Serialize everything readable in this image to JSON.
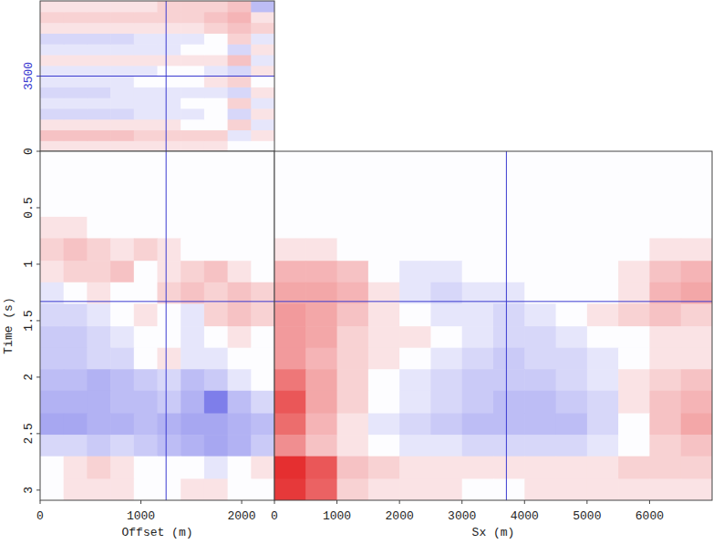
{
  "chart_data": [
    {
      "type": "heatmap",
      "tick_labels": "y",
      "xlim": [
        0,
        2325
      ],
      "ylim": [
        0,
        7000
      ],
      "yticks": [
        3500
      ],
      "zlim": [
        -1,
        1
      ],
      "cursor": {
        "x": 1250,
        "y": 3500
      },
      "x_bins": [
        0,
        232.5,
        465,
        697.5,
        930,
        1162.5,
        1395,
        1627.5,
        1860,
        2092.5,
        2325
      ],
      "y_bins": [
        0,
        500,
        1000,
        1500,
        2000,
        2500,
        3000,
        3500,
        4000,
        4500,
        5000,
        5500,
        6000,
        6500,
        7000
      ],
      "cells": [
        [
          0.05,
          0.05,
          0.05,
          0.05,
          0.05,
          0.05,
          0.05,
          0.05,
          0,
          0
        ],
        [
          0.15,
          0.15,
          0.15,
          0.15,
          0.1,
          0.1,
          0.1,
          0.1,
          -0.05,
          0.05
        ],
        [
          0.05,
          0.05,
          0.05,
          0.05,
          0.05,
          0.05,
          0,
          0,
          0.1,
          -0.05
        ],
        [
          -0.1,
          -0.1,
          -0.1,
          -0.1,
          -0.05,
          -0.05,
          -0.05,
          0,
          -0.1,
          0.05
        ],
        [
          -0.05,
          -0.05,
          -0.05,
          -0.05,
          -0.05,
          -0.05,
          0,
          0,
          0.1,
          -0.05
        ],
        [
          -0.1,
          -0.1,
          -0.1,
          -0.05,
          -0.05,
          -0.05,
          -0.05,
          -0.05,
          -0.1,
          0.05
        ],
        [
          -0.05,
          -0.05,
          -0.05,
          -0.05,
          0,
          0,
          0,
          0.05,
          0.1,
          0
        ],
        [
          -0.05,
          -0.05,
          -0.05,
          -0.05,
          -0.05,
          0,
          0,
          -0.05,
          -0.1,
          0.05
        ],
        [
          0.05,
          0.05,
          0.05,
          0.05,
          0.05,
          0.05,
          0.05,
          0.05,
          0.15,
          -0.05
        ],
        [
          -0.05,
          -0.05,
          -0.05,
          -0.05,
          -0.05,
          -0.05,
          0,
          0,
          -0.1,
          0.05
        ],
        [
          -0.1,
          -0.1,
          -0.1,
          -0.1,
          -0.05,
          -0.05,
          -0.05,
          0,
          0.1,
          -0.05
        ],
        [
          0.05,
          0.05,
          0.05,
          0.05,
          0.05,
          0.05,
          0.05,
          0.1,
          0.15,
          0.1
        ],
        [
          0.1,
          0.1,
          0.1,
          0.1,
          0.1,
          0.1,
          0.1,
          0.15,
          0.2,
          0.05
        ],
        [
          0.05,
          0.05,
          0.05,
          0.05,
          0.05,
          0.1,
          0.1,
          0.1,
          0.15,
          -0.2
        ]
      ]
    },
    {
      "type": "heatmap",
      "x_label": "Offset (m)",
      "y_label": "Time (s)",
      "xlim": [
        0,
        2325
      ],
      "xticks": [
        0,
        1000,
        2000
      ],
      "ylim": [
        3.09,
        0
      ],
      "yticks": [
        0,
        0.5,
        1,
        1.5,
        2,
        2.5,
        3
      ],
      "zlim": [
        -1,
        1
      ],
      "cursor": {
        "x": 1250,
        "y": 1.33
      },
      "x_bins": [
        0,
        232.5,
        465,
        697.5,
        930,
        1162.5,
        1395,
        1627.5,
        1860,
        2092.5,
        2325
      ],
      "y_bins": [
        0,
        0.19,
        0.39,
        0.58,
        0.77,
        0.97,
        1.16,
        1.35,
        1.55,
        1.74,
        1.93,
        2.12,
        2.32,
        2.51,
        2.7,
        2.9,
        3.09
      ],
      "cells": [
        [
          0,
          0,
          0,
          0,
          0,
          0,
          0,
          0,
          0,
          0
        ],
        [
          0,
          0,
          0,
          0,
          0,
          0,
          0,
          0,
          0,
          0
        ],
        [
          0,
          0,
          0,
          0,
          0,
          0,
          0,
          0,
          0,
          0
        ],
        [
          0.05,
          0.05,
          0,
          0,
          0,
          0,
          0,
          0,
          0,
          0
        ],
        [
          0.1,
          0.15,
          0.1,
          0.05,
          0.1,
          0.05,
          0,
          0,
          0,
          0
        ],
        [
          0.05,
          0.1,
          0.1,
          0.15,
          0,
          0.05,
          0.1,
          0.15,
          0.05,
          0
        ],
        [
          -0.05,
          0,
          0.05,
          0,
          0,
          0.1,
          0.15,
          0.1,
          0.15,
          0.1
        ],
        [
          -0.1,
          -0.1,
          -0.05,
          0,
          0.05,
          0,
          -0.05,
          0.1,
          0.15,
          0.1
        ],
        [
          -0.15,
          -0.15,
          -0.1,
          -0.05,
          0,
          0,
          -0.05,
          0,
          0.05,
          0
        ],
        [
          -0.15,
          -0.15,
          -0.1,
          -0.1,
          0,
          0.05,
          -0.05,
          -0.05,
          0,
          0
        ],
        [
          -0.2,
          -0.2,
          -0.25,
          -0.2,
          -0.15,
          -0.1,
          -0.2,
          -0.15,
          -0.05,
          0
        ],
        [
          -0.25,
          -0.25,
          -0.25,
          -0.2,
          -0.2,
          -0.15,
          -0.25,
          -0.5,
          -0.2,
          -0.1
        ],
        [
          -0.3,
          -0.3,
          -0.25,
          -0.25,
          -0.2,
          -0.25,
          -0.3,
          -0.3,
          -0.25,
          -0.2
        ],
        [
          -0.1,
          -0.1,
          -0.15,
          -0.1,
          -0.15,
          -0.2,
          -0.25,
          -0.3,
          -0.25,
          -0.15
        ],
        [
          0,
          0.05,
          0.1,
          0.05,
          0,
          0,
          0,
          -0.05,
          0,
          0.05
        ],
        [
          0,
          0.05,
          0.05,
          0.05,
          0,
          0,
          0.05,
          0.05,
          0,
          0
        ]
      ]
    },
    {
      "type": "heatmap",
      "x_label": "Sx (m)",
      "tick_labels": "x",
      "xlim": [
        0,
        7000
      ],
      "xticks": [
        0,
        1000,
        2000,
        3000,
        4000,
        5000,
        6000
      ],
      "ylim": [
        3.09,
        0
      ],
      "zlim": [
        -1,
        1
      ],
      "cursor": {
        "x": 3710,
        "y": 1.33
      },
      "x_bins": [
        0,
        500,
        1000,
        1500,
        2000,
        2500,
        3000,
        3500,
        4000,
        4500,
        5000,
        5500,
        6000,
        6500,
        7000
      ],
      "y_bins": [
        0,
        0.19,
        0.39,
        0.58,
        0.77,
        0.97,
        1.16,
        1.35,
        1.55,
        1.74,
        1.93,
        2.12,
        2.32,
        2.51,
        2.7,
        2.9,
        3.09
      ],
      "cells": [
        [
          0,
          0,
          0,
          0,
          0,
          0,
          0,
          0,
          0,
          0,
          0,
          0,
          0,
          0
        ],
        [
          0,
          0,
          0,
          0,
          0,
          0,
          0,
          0,
          0,
          0,
          0,
          0,
          0,
          0
        ],
        [
          0,
          0,
          0,
          0,
          0,
          0,
          0,
          0,
          0,
          0,
          0,
          0,
          0,
          0
        ],
        [
          0,
          0,
          0,
          0,
          0,
          0,
          0,
          0,
          0,
          0,
          0,
          0,
          0,
          0
        ],
        [
          0.05,
          0.05,
          0,
          0,
          0,
          0,
          0,
          0,
          0,
          0,
          0,
          0,
          0.05,
          0.05
        ],
        [
          0.2,
          0.2,
          0.15,
          0,
          -0.05,
          -0.05,
          0,
          0,
          0,
          0,
          0,
          0.05,
          0.15,
          0.2
        ],
        [
          0.25,
          0.25,
          0.2,
          0.05,
          -0.05,
          -0.1,
          -0.05,
          -0.05,
          0,
          0,
          0,
          0.05,
          0.2,
          0.25
        ],
        [
          0.3,
          0.25,
          0.15,
          0.05,
          0,
          -0.05,
          -0.05,
          -0.1,
          -0.05,
          0,
          0.05,
          0.1,
          0.15,
          0.1
        ],
        [
          0.3,
          0.25,
          0.1,
          0.05,
          0.05,
          0,
          -0.05,
          -0.1,
          -0.1,
          -0.05,
          0,
          0,
          0.05,
          0.05
        ],
        [
          0.3,
          0.2,
          0.1,
          0.05,
          0,
          -0.05,
          -0.1,
          -0.15,
          -0.1,
          -0.1,
          -0.05,
          0,
          0.05,
          0.05
        ],
        [
          0.45,
          0.25,
          0.1,
          0,
          -0.05,
          -0.1,
          -0.15,
          -0.15,
          -0.15,
          -0.1,
          -0.05,
          0.05,
          0.1,
          0.15
        ],
        [
          0.6,
          0.25,
          0.1,
          0,
          -0.05,
          -0.1,
          -0.15,
          -0.2,
          -0.2,
          -0.15,
          -0.1,
          0.05,
          0.15,
          0.2
        ],
        [
          0.5,
          0.2,
          0.05,
          -0.05,
          -0.1,
          -0.15,
          -0.2,
          -0.2,
          -0.2,
          -0.2,
          -0.1,
          0,
          0.15,
          0.25
        ],
        [
          0.35,
          0.15,
          0.05,
          0,
          -0.05,
          -0.05,
          -0.1,
          -0.1,
          -0.1,
          -0.1,
          -0.05,
          0,
          0.1,
          0.15
        ],
        [
          0.8,
          0.6,
          0.15,
          0.1,
          0.05,
          0.05,
          0.05,
          0.05,
          0.05,
          0.05,
          0.05,
          0.1,
          0.1,
          0.1
        ],
        [
          0.75,
          0.55,
          0.1,
          0.05,
          0.05,
          0.05,
          0,
          0,
          0.05,
          0.05,
          0.05,
          0.05,
          0.05,
          0.05
        ]
      ]
    }
  ]
}
